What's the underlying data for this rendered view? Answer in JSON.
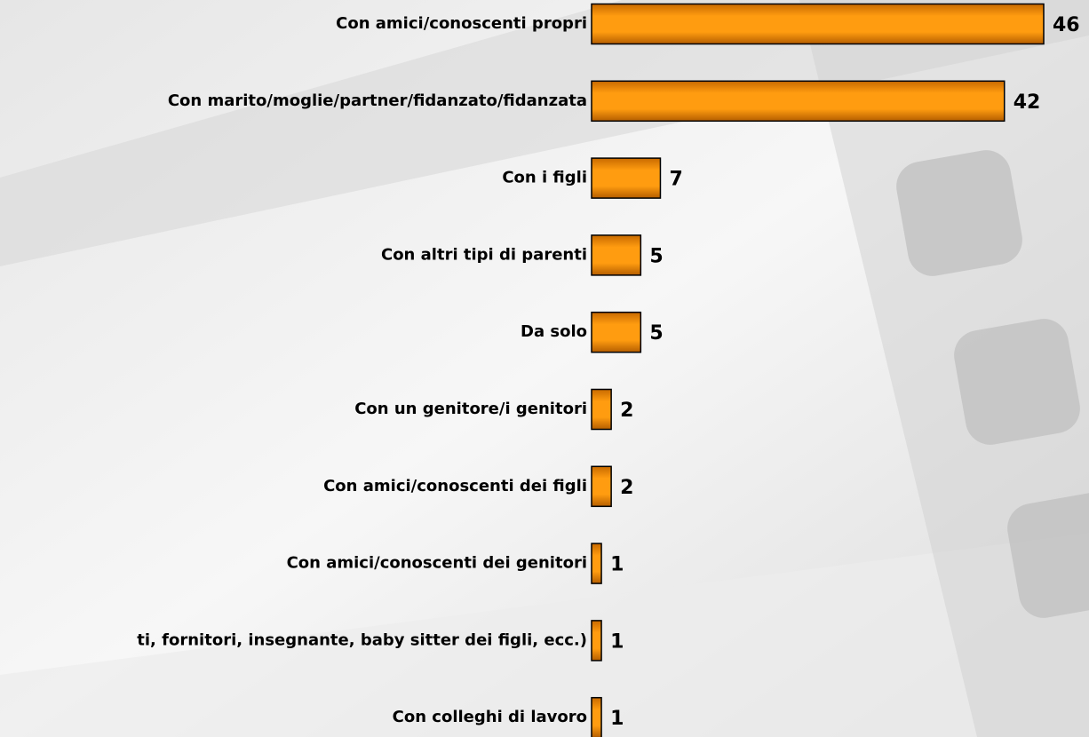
{
  "chart_data": {
    "type": "bar",
    "orientation": "horizontal",
    "color": "#ff9900",
    "categories": [
      "Con amici/conoscenti propri",
      "Con marito/moglie/partner/fidanzato/fidanzata",
      "Con i figli",
      "Con altri tipi di parenti",
      "Da solo",
      "Con un genitore/i genitori",
      "Con amici/conoscenti dei figli",
      "Con amici/conoscenti dei genitori",
      "ti, fornitori, insegnante, baby sitter dei figli, ecc.)",
      "Con colleghi di lavoro"
    ],
    "values": [
      46,
      42,
      7,
      5,
      5,
      2,
      2,
      1,
      1,
      1
    ]
  }
}
